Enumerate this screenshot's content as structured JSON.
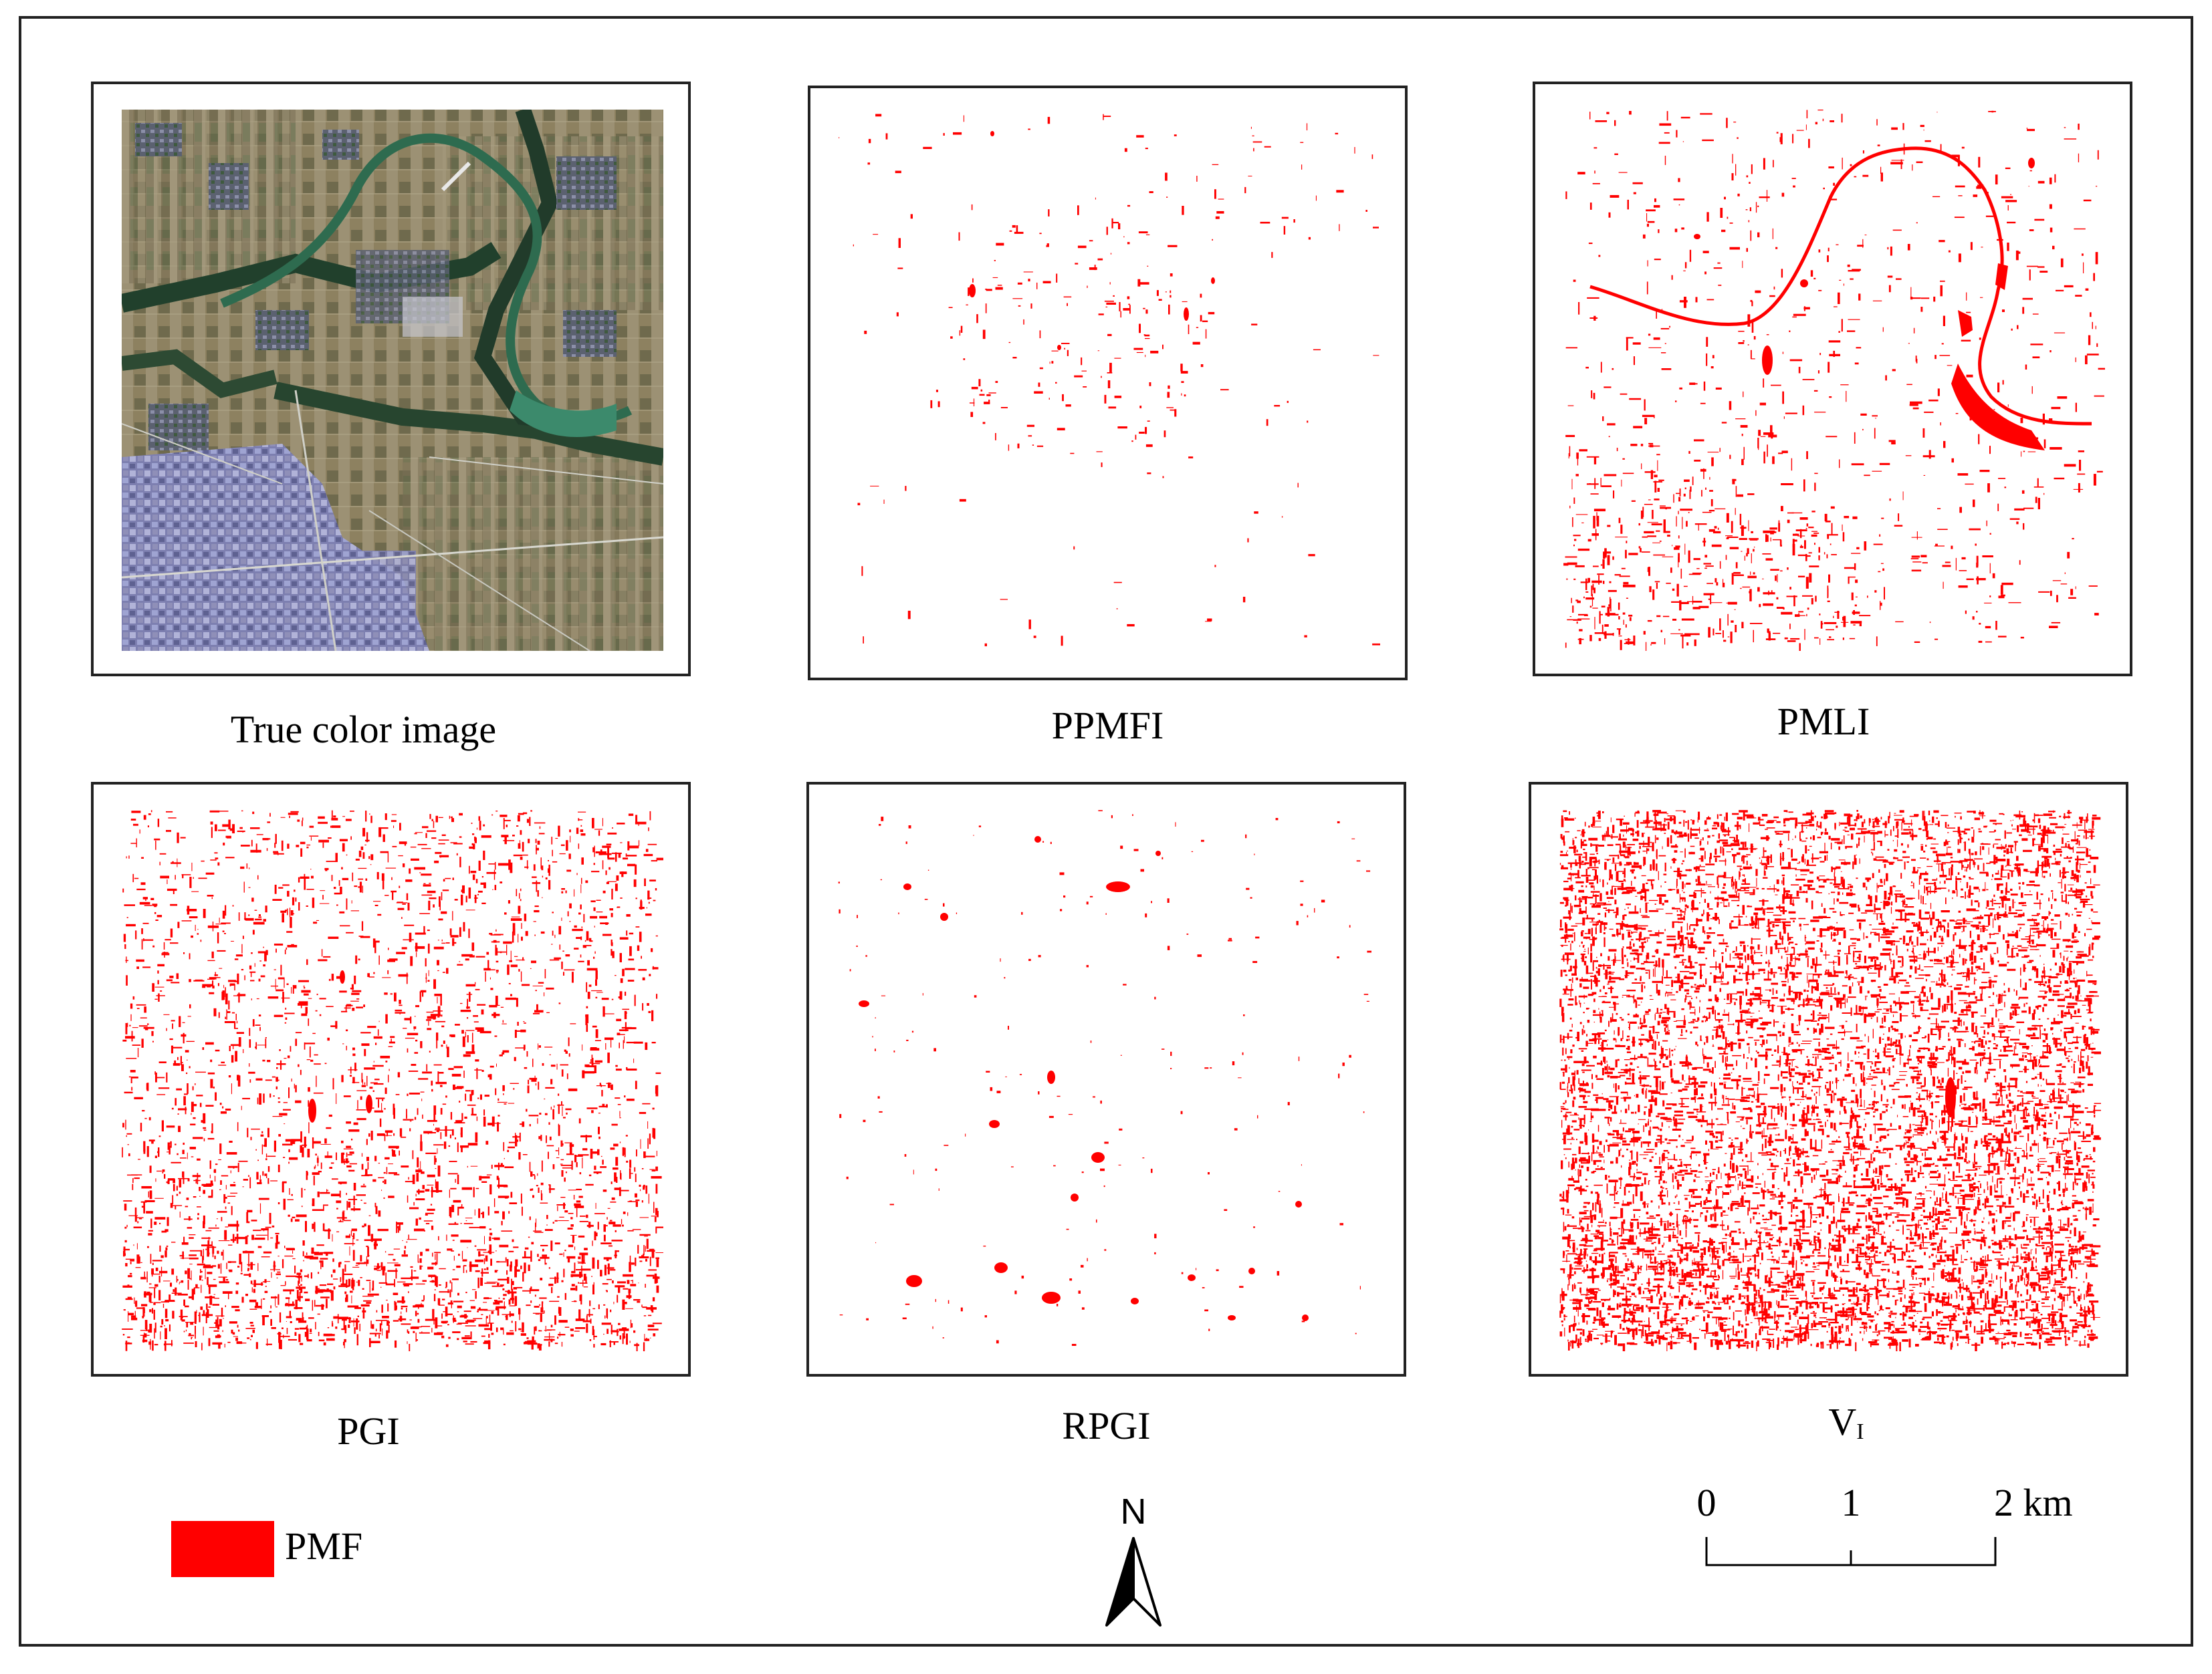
{
  "panels": [
    {
      "id": "true-color",
      "caption": "True color image"
    },
    {
      "id": "ppmfi",
      "caption": "PPMFI"
    },
    {
      "id": "pmli",
      "caption": "PMLI"
    },
    {
      "id": "pgi",
      "caption": "PGI"
    },
    {
      "id": "rpgi",
      "caption": "RPGI"
    },
    {
      "id": "vi",
      "caption": "V",
      "caption_sub": "I"
    }
  ],
  "legend": {
    "label": "PMF",
    "color": "#ff0000"
  },
  "north_arrow": {
    "label": "N"
  },
  "scale_bar": {
    "ticks": [
      "0",
      "1",
      "2 km"
    ]
  },
  "colors": {
    "pmf": "#ff0000",
    "frame": "#222222"
  }
}
